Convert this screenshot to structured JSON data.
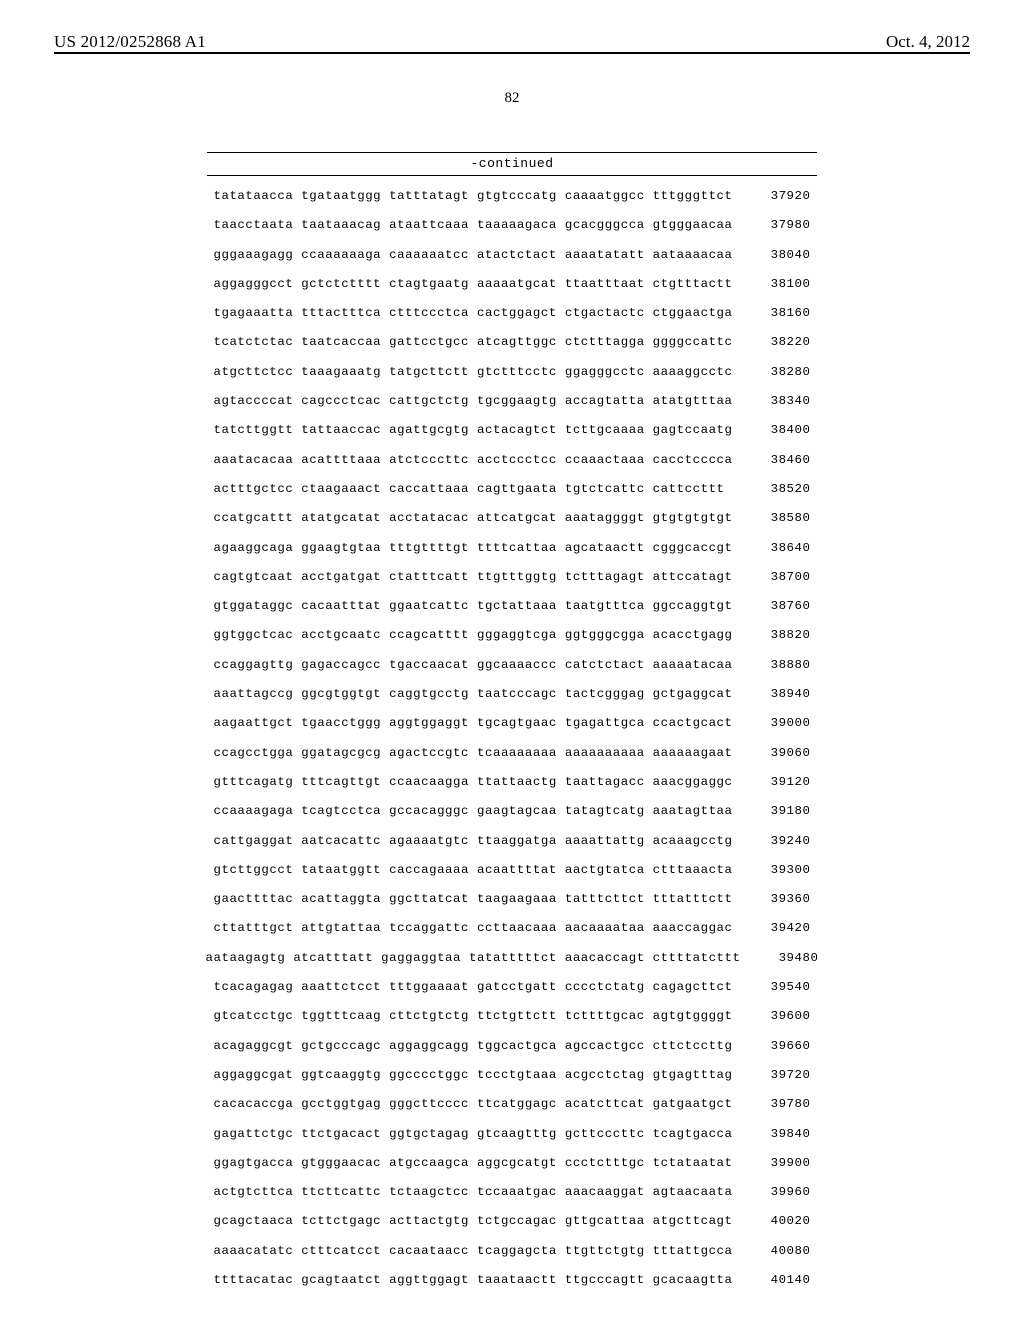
{
  "header": {
    "publication_number": "US 2012/0252868 A1",
    "publication_date": "Oct. 4, 2012",
    "page_number": "82"
  },
  "continued_label": "-continued",
  "sequence": {
    "rows": [
      {
        "blocks": [
          "tatataacca",
          "tgataatggg",
          "tatttatagt",
          "gtgtcccatg",
          "caaaatggcc",
          "tttgggttct"
        ],
        "position": "37920"
      },
      {
        "blocks": [
          "taacctaata",
          "taataaacag",
          "ataattcaaa",
          "taaaaagaca",
          "gcacgggcca",
          "gtgggaacaa"
        ],
        "position": "37980"
      },
      {
        "blocks": [
          "gggaaagagg",
          "ccaaaaaaga",
          "caaaaaatcc",
          "atactctact",
          "aaaatatatt",
          "aataaaacaa"
        ],
        "position": "38040"
      },
      {
        "blocks": [
          "aggagggcct",
          "gctctctttt",
          "ctagtgaatg",
          "aaaaatgcat",
          "ttaatttaat",
          "ctgtttactt"
        ],
        "position": "38100"
      },
      {
        "blocks": [
          "tgagaaatta",
          "tttactttca",
          "ctttccctca",
          "cactggagct",
          "ctgactactc",
          "ctggaactga"
        ],
        "position": "38160"
      },
      {
        "blocks": [
          "tcatctctac",
          "taatcaccaa",
          "gattcctgcc",
          "atcagttggc",
          "ctctttagga",
          "ggggccattc"
        ],
        "position": "38220"
      },
      {
        "blocks": [
          "atgcttctcc",
          "taaagaaatg",
          "tatgcttctt",
          "gtctttcctc",
          "ggagggcctc",
          "aaaaggcctc"
        ],
        "position": "38280"
      },
      {
        "blocks": [
          "agtaccccat",
          "cagccctcac",
          "cattgctctg",
          "tgcggaagtg",
          "accagtatta",
          "atatgtttaa"
        ],
        "position": "38340"
      },
      {
        "blocks": [
          "tatcttggtt",
          "tattaaccac",
          "agattgcgtg",
          "actacagtct",
          "tcttgcaaaa",
          "gagtccaatg"
        ],
        "position": "38400"
      },
      {
        "blocks": [
          "aaatacacaa",
          "acattttaaa",
          "atctcccttc",
          "acctccctcc",
          "ccaaactaaa",
          "cacctcccca"
        ],
        "position": "38460"
      },
      {
        "blocks": [
          "actttgctcc",
          "ctaagaaact",
          "caccattaaa",
          "cagttgaata",
          "tgtctcattc",
          "cattccttt "
        ],
        "position": "38520"
      },
      {
        "blocks": [
          "ccatgcattt",
          "atatgcatat",
          "acctatacac",
          "attcatgcat",
          "aaataggggt",
          "gtgtgtgtgt"
        ],
        "position": "38580"
      },
      {
        "blocks": [
          "agaaggcaga",
          "ggaagtgtaa",
          "tttgttttgt",
          "ttttcattaa",
          "agcataactt",
          "cgggcaccgt"
        ],
        "position": "38640"
      },
      {
        "blocks": [
          "cagtgtcaat",
          "acctgatgat",
          "ctatttcatt",
          "ttgtttggtg",
          "tctttagagt",
          "attccatagt"
        ],
        "position": "38700"
      },
      {
        "blocks": [
          "gtggataggc",
          "cacaatttat",
          "ggaatcattc",
          "tgctattaaa",
          "taatgtttca",
          "ggccaggtgt"
        ],
        "position": "38760"
      },
      {
        "blocks": [
          "ggtggctcac",
          "acctgcaatc",
          "ccagcatttt",
          "gggaggtcga",
          "ggtgggcgga",
          "acacctgagg"
        ],
        "position": "38820"
      },
      {
        "blocks": [
          "ccaggagttg",
          "gagaccagcc",
          "tgaccaacat",
          "ggcaaaaccc",
          "catctctact",
          "aaaaatacaa"
        ],
        "position": "38880"
      },
      {
        "blocks": [
          "aaattagccg",
          "ggcgtggtgt",
          "caggtgcctg",
          "taatcccagc",
          "tactcgggag",
          "gctgaggcat"
        ],
        "position": "38940"
      },
      {
        "blocks": [
          "aagaattgct",
          "tgaacctggg",
          "aggtggaggt",
          "tgcagtgaac",
          "tgagattgca",
          "ccactgcact"
        ],
        "position": "39000"
      },
      {
        "blocks": [
          "ccagcctgga",
          "ggatagcgcg",
          "agactccgtc",
          "tcaaaaaaaa",
          "aaaaaaaaaa",
          "aaaaaagaat"
        ],
        "position": "39060"
      },
      {
        "blocks": [
          "gtttcagatg",
          "tttcagttgt",
          "ccaacaagga",
          "ttattaactg",
          "taattagacc",
          "aaacggaggc"
        ],
        "position": "39120"
      },
      {
        "blocks": [
          "ccaaaagaga",
          "tcagtcctca",
          "gccacagggc",
          "gaagtagcaa",
          "tatagtcatg",
          "aaatagttaa"
        ],
        "position": "39180"
      },
      {
        "blocks": [
          "cattgaggat",
          "aatcacattc",
          "agaaaatgtc",
          "ttaaggatga",
          "aaaattattg",
          "acaaagcctg"
        ],
        "position": "39240"
      },
      {
        "blocks": [
          "gtcttggcct",
          "tataatggtt",
          "caccagaaaa",
          "acaattttat",
          "aactgtatca",
          "ctttaaacta"
        ],
        "position": "39300"
      },
      {
        "blocks": [
          "gaacttttac",
          "acattaggta",
          "ggcttatcat",
          "taagaagaaa",
          "tatttcttct",
          "tttatttctt"
        ],
        "position": "39360"
      },
      {
        "blocks": [
          "cttatttgct",
          "attgtattaa",
          "tccaggattc",
          "ccttaacaaa",
          "aacaaaataa",
          "aaaccaggac"
        ],
        "position": "39420"
      },
      {
        "blocks": [
          "aataagagtg",
          "atcatttatt",
          "gaggaggtaa",
          "tatatttttct",
          "aaacaccagt",
          "cttttatcttt"
        ],
        "position": "39480"
      },
      {
        "blocks": [
          "tcacagagag",
          "aaattctcct",
          "tttggaaaat",
          "gatcctgatt",
          "cccctctatg",
          "cagagcttct"
        ],
        "position": "39540"
      },
      {
        "blocks": [
          "gtcatcctgc",
          "tggtttcaag",
          "cttctgtctg",
          "ttctgttctt",
          "tcttttgcac",
          "agtgtggggt"
        ],
        "position": "39600"
      },
      {
        "blocks": [
          "acagaggcgt",
          "gctgcccagc",
          "aggaggcagg",
          "tggcactgca",
          "agccactgcc",
          "cttctccttg"
        ],
        "position": "39660"
      },
      {
        "blocks": [
          "aggaggcgat",
          "ggtcaaggtg",
          "ggcccctggc",
          "tccctgtaaa",
          "acgcctctag",
          "gtgagtttag"
        ],
        "position": "39720"
      },
      {
        "blocks": [
          "cacacaccga",
          "gcctggtgag",
          "gggcttcccc",
          "ttcatggagc",
          "acatcttcat",
          "gatgaatgct"
        ],
        "position": "39780"
      },
      {
        "blocks": [
          "gagattctgc",
          "ttctgacact",
          "ggtgctagag",
          "gtcaagtttg",
          "gcttcccttc",
          "tcagtgacca"
        ],
        "position": "39840"
      },
      {
        "blocks": [
          "ggagtgacca",
          "gtgggaacac",
          "atgccaagca",
          "aggcgcatgt",
          "ccctctttgc",
          "tctataatat"
        ],
        "position": "39900"
      },
      {
        "blocks": [
          "actgtcttca",
          "ttcttcattc",
          "tctaagctcc",
          "tccaaatgac",
          "aaacaaggat",
          "agtaacaata"
        ],
        "position": "39960"
      },
      {
        "blocks": [
          "gcagctaaca",
          "tcttctgagc",
          "acttactgtg",
          "tctgccagac",
          "gttgcattaa",
          "atgcttcagt"
        ],
        "position": "40020"
      },
      {
        "blocks": [
          "aaaacatatc",
          "ctttcatcct",
          "cacaataacc",
          "tcaggagcta",
          "ttgttctgtg",
          "tttattgcca"
        ],
        "position": "40080"
      },
      {
        "blocks": [
          "ttttacatac",
          "gcagtaatct",
          "aggttggagt",
          "taaataactt",
          "ttgcccagtt",
          "gcacaagtta"
        ],
        "position": "40140"
      }
    ]
  }
}
